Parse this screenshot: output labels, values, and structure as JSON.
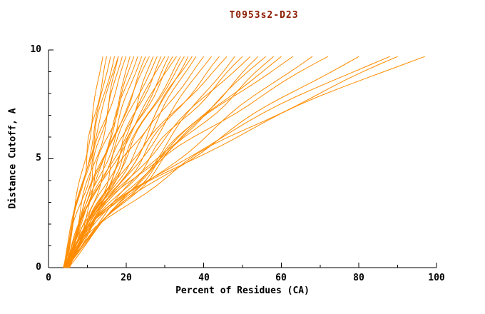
{
  "chart_data": {
    "type": "line",
    "title": "T0953s2-D23",
    "xlabel": "Percent of Residues (CA)",
    "ylabel": "Distance Cutoff, A",
    "xlim": [
      0,
      100
    ],
    "ylim": [
      0,
      10
    ],
    "x_ticks": [
      0,
      20,
      40,
      60,
      80,
      100
    ],
    "y_ticks": [
      0,
      5,
      10
    ],
    "x_minor_step": 10,
    "y_minor_step": 1,
    "grid": false,
    "legend": "none",
    "line_color": "#ff8c00",
    "axis_color": "#000000",
    "curve_y_top": 9.7,
    "series_description": "Each curve: one model; x = percent of CA residues within distance cutoff y. Curves start near x=4 at cutoff 0 and rise to cutoff 9.7; s=start percent, e=end percent at top, k=shape exponent, f/p/a=waviness frequency/phase/amplitude.",
    "series": [
      {
        "s": 4.0,
        "e": 14,
        "k": 0.95,
        "f": 2.0,
        "p": 0.3,
        "a": 0.5
      },
      {
        "s": 4.5,
        "e": 15,
        "k": 1.05,
        "f": 2.5,
        "p": 1.1,
        "a": 0.6
      },
      {
        "s": 3.8,
        "e": 16,
        "k": 1.0,
        "f": 1.8,
        "p": 2.0,
        "a": 0.5
      },
      {
        "s": 4.2,
        "e": 17,
        "k": 1.1,
        "f": 2.2,
        "p": 0.7,
        "a": 0.7
      },
      {
        "s": 5.0,
        "e": 18,
        "k": 0.9,
        "f": 2.8,
        "p": 1.5,
        "a": 0.6
      },
      {
        "s": 4.0,
        "e": 18,
        "k": 1.2,
        "f": 1.5,
        "p": 2.6,
        "a": 0.5
      },
      {
        "s": 4.6,
        "e": 19,
        "k": 1.0,
        "f": 2.0,
        "p": 0.2,
        "a": 0.8
      },
      {
        "s": 4.1,
        "e": 20,
        "k": 1.15,
        "f": 2.4,
        "p": 1.9,
        "a": 0.7
      },
      {
        "s": 5.2,
        "e": 21,
        "k": 0.85,
        "f": 1.7,
        "p": 0.9,
        "a": 0.6
      },
      {
        "s": 4.3,
        "e": 22,
        "k": 1.0,
        "f": 2.6,
        "p": 2.4,
        "a": 0.8
      },
      {
        "s": 4.8,
        "e": 23,
        "k": 1.1,
        "f": 2.1,
        "p": 0.5,
        "a": 0.7
      },
      {
        "s": 4.0,
        "e": 24,
        "k": 0.95,
        "f": 1.9,
        "p": 1.3,
        "a": 0.9
      },
      {
        "s": 5.5,
        "e": 25,
        "k": 1.05,
        "f": 2.3,
        "p": 2.8,
        "a": 0.8
      },
      {
        "s": 4.4,
        "e": 26,
        "k": 1.2,
        "f": 1.6,
        "p": 0.8,
        "a": 0.7
      },
      {
        "s": 4.9,
        "e": 27,
        "k": 0.9,
        "f": 2.7,
        "p": 1.7,
        "a": 0.9
      },
      {
        "s": 4.2,
        "e": 28,
        "k": 1.1,
        "f": 2.0,
        "p": 2.2,
        "a": 0.8
      },
      {
        "s": 5.1,
        "e": 29,
        "k": 1.0,
        "f": 2.5,
        "p": 0.4,
        "a": 1.0
      },
      {
        "s": 4.5,
        "e": 30,
        "k": 1.15,
        "f": 1.8,
        "p": 1.2,
        "a": 0.9
      },
      {
        "s": 4.0,
        "e": 31,
        "k": 0.95,
        "f": 2.2,
        "p": 2.7,
        "a": 0.8
      },
      {
        "s": 5.3,
        "e": 32,
        "k": 1.05,
        "f": 2.6,
        "p": 0.6,
        "a": 1.0
      },
      {
        "s": 4.6,
        "e": 33,
        "k": 1.25,
        "f": 1.7,
        "p": 1.8,
        "a": 0.9
      },
      {
        "s": 4.2,
        "e": 34,
        "k": 1.0,
        "f": 2.1,
        "p": 2.5,
        "a": 1.0
      },
      {
        "s": 5.0,
        "e": 35,
        "k": 1.1,
        "f": 2.4,
        "p": 0.9,
        "a": 0.9
      },
      {
        "s": 4.4,
        "e": 36,
        "k": 0.9,
        "f": 1.9,
        "p": 1.6,
        "a": 1.1
      },
      {
        "s": 4.8,
        "e": 37,
        "k": 1.15,
        "f": 2.8,
        "p": 2.3,
        "a": 1.0
      },
      {
        "s": 4.1,
        "e": 38,
        "k": 1.0,
        "f": 2.0,
        "p": 0.3,
        "a": 1.1
      },
      {
        "s": 5.4,
        "e": 40,
        "k": 1.2,
        "f": 2.3,
        "p": 1.4,
        "a": 1.0
      },
      {
        "s": 4.3,
        "e": 42,
        "k": 1.05,
        "f": 1.6,
        "p": 2.1,
        "a": 1.2
      },
      {
        "s": 4.7,
        "e": 44,
        "k": 1.1,
        "f": 2.5,
        "p": 0.8,
        "a": 1.1
      },
      {
        "s": 4.0,
        "e": 46,
        "k": 1.25,
        "f": 2.2,
        "p": 1.9,
        "a": 1.2
      },
      {
        "s": 5.2,
        "e": 48,
        "k": 1.0,
        "f": 1.8,
        "p": 2.6,
        "a": 1.1
      },
      {
        "s": 4.5,
        "e": 50,
        "k": 1.15,
        "f": 2.7,
        "p": 0.5,
        "a": 1.3
      },
      {
        "s": 4.9,
        "e": 52,
        "k": 1.3,
        "f": 2.1,
        "p": 1.1,
        "a": 1.2
      },
      {
        "s": 4.2,
        "e": 54,
        "k": 1.05,
        "f": 2.4,
        "p": 2.0,
        "a": 1.3
      },
      {
        "s": 5.0,
        "e": 56,
        "k": 1.2,
        "f": 1.7,
        "p": 0.7,
        "a": 1.2
      },
      {
        "s": 4.4,
        "e": 58,
        "k": 1.1,
        "f": 2.6,
        "p": 1.6,
        "a": 1.4
      },
      {
        "s": 4.7,
        "e": 60,
        "k": 1.3,
        "f": 2.0,
        "p": 2.4,
        "a": 1.3
      },
      {
        "s": 4.1,
        "e": 63,
        "k": 1.4,
        "f": 2.3,
        "p": 0.4,
        "a": 1.4
      },
      {
        "s": 5.1,
        "e": 68,
        "k": 1.25,
        "f": 1.9,
        "p": 1.3,
        "a": 1.5
      },
      {
        "s": 4.5,
        "e": 72,
        "k": 1.45,
        "f": 2.5,
        "p": 2.2,
        "a": 1.4
      },
      {
        "s": 4.8,
        "e": 80,
        "k": 1.35,
        "f": 2.1,
        "p": 0.9,
        "a": 1.6
      },
      {
        "s": 4.2,
        "e": 88,
        "k": 1.55,
        "f": 1.8,
        "p": 1.7,
        "a": 1.5
      },
      {
        "s": 5.0,
        "e": 90,
        "k": 1.45,
        "f": 2.4,
        "p": 2.5,
        "a": 1.6
      },
      {
        "s": 4.4,
        "e": 97,
        "k": 1.6,
        "f": 2.0,
        "p": 0.6,
        "a": 1.7
      }
    ]
  }
}
